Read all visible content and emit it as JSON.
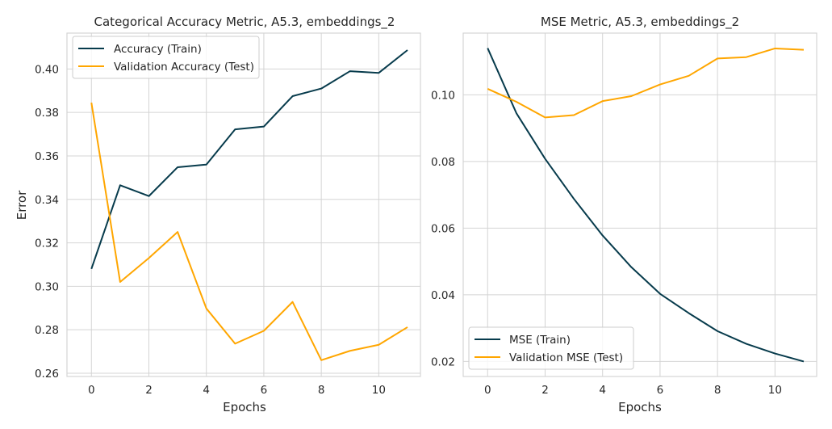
{
  "colors": {
    "train": "#073b4c",
    "test": "#ffa600",
    "grid": "#d4d4d4",
    "frame": "#d4d4d4"
  },
  "chart_data": [
    {
      "type": "line",
      "title": "Categorical Accuracy Metric, A5.3, embeddings_2",
      "xlabel": "Epochs",
      "ylabel": "Error",
      "x": [
        0,
        1,
        2,
        3,
        4,
        5,
        6,
        7,
        8,
        9,
        10,
        11
      ],
      "xticks": [
        0,
        2,
        4,
        6,
        8,
        10
      ],
      "yticks": [
        0.26,
        0.28,
        0.3,
        0.32,
        0.34,
        0.36,
        0.38,
        0.4
      ],
      "ytick_labels": [
        "0.26",
        "0.28",
        "0.30",
        "0.32",
        "0.34",
        "0.36",
        "0.38",
        "0.40"
      ],
      "xlim": [
        -0.85,
        11.45
      ],
      "ylim": [
        0.2585,
        0.4165
      ],
      "grid": true,
      "legend_position": "upper-left",
      "series": [
        {
          "name": "Accuracy (Train)",
          "color": "#073b4c",
          "values": [
            0.308,
            0.3465,
            0.3415,
            0.3548,
            0.356,
            0.3722,
            0.3735,
            0.3875,
            0.391,
            0.399,
            0.3982,
            0.4087
          ]
        },
        {
          "name": "Validation Accuracy (Test)",
          "color": "#ffa600",
          "values": [
            0.3845,
            0.302,
            0.313,
            0.325,
            0.2898,
            0.2736,
            0.2795,
            0.2928,
            0.266,
            0.2703,
            0.2731,
            0.2812
          ]
        }
      ]
    },
    {
      "type": "line",
      "title": "MSE Metric, A5.3, embeddings_2",
      "xlabel": "Epochs",
      "ylabel": "",
      "x": [
        0,
        1,
        2,
        3,
        4,
        5,
        6,
        7,
        8,
        9,
        10,
        11
      ],
      "xticks": [
        0,
        2,
        4,
        6,
        8,
        10
      ],
      "yticks": [
        0.02,
        0.04,
        0.06,
        0.08,
        0.1
      ],
      "ytick_labels": [
        "0.02",
        "0.04",
        "0.06",
        "0.08",
        "0.10"
      ],
      "xlim": [
        -0.85,
        11.45
      ],
      "ylim": [
        0.0155,
        0.1185
      ],
      "grid": true,
      "legend_position": "lower-left",
      "series": [
        {
          "name": "MSE (Train)",
          "color": "#073b4c",
          "values": [
            0.114,
            0.0945,
            0.0808,
            0.0688,
            0.0578,
            0.0483,
            0.0403,
            0.0345,
            0.0291,
            0.0253,
            0.0224,
            0.02
          ]
        },
        {
          "name": "Validation MSE (Test)",
          "color": "#ffa600",
          "values": [
            0.1018,
            0.0979,
            0.0932,
            0.0939,
            0.0981,
            0.0996,
            0.1031,
            0.1057,
            0.1109,
            0.1113,
            0.1139,
            0.1135
          ]
        }
      ]
    }
  ]
}
